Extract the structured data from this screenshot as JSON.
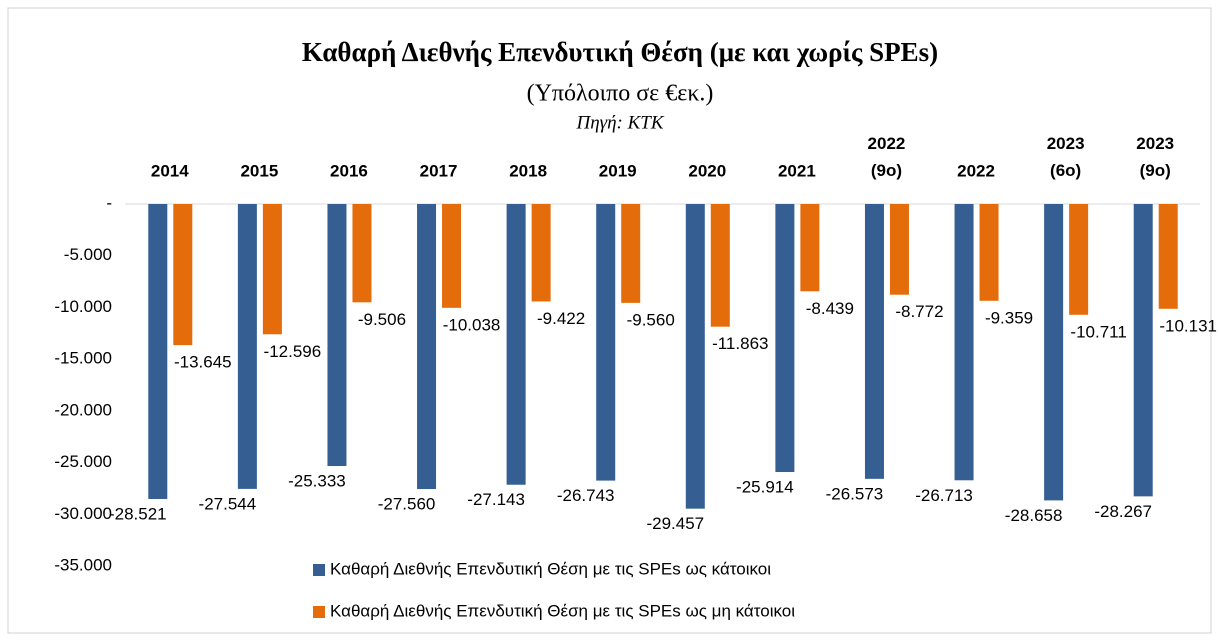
{
  "chart_data": {
    "type": "bar",
    "title": "Καθαρή Διεθνής Επενδυτική Θέση (με και χωρίς SPEs)",
    "subtitle": "(Υπόλοιπο σε €εκ.)",
    "source": "Πηγή: ΚΤΚ",
    "categories": [
      "2014",
      "2015",
      "2016",
      "2017",
      "2018",
      "2019",
      "2020",
      "2021",
      "2022 (9ο)",
      "2022",
      "2023 (6ο)",
      "2023 (9ο)"
    ],
    "series": [
      {
        "name": "Καθαρή Διεθνής Επενδυτική Θέση με τις SPEs ως κάτοικοι",
        "color": "#355f93",
        "values": [
          -28521,
          -27544,
          -25333,
          -27560,
          -27143,
          -26743,
          -29457,
          -25914,
          -26573,
          -26713,
          -28658,
          -28267
        ],
        "value_labels": [
          "-28.521",
          "-27.544",
          "-25.333",
          "-27.560",
          "-27.143",
          "-26.743",
          "-29.457",
          "-25.914",
          "-26.573",
          "-26.713",
          "-28.658",
          "-28.267"
        ]
      },
      {
        "name": "Καθαρή Διεθνής Επενδυτική Θέση με τις SPEs ως μη κάτοικοι",
        "color": "#e46c0a",
        "values": [
          -13645,
          -12596,
          -9506,
          -10038,
          -9422,
          -9560,
          -11863,
          -8439,
          -8772,
          -9359,
          -10711,
          -10131
        ],
        "value_labels": [
          "-13.645",
          "-12.596",
          "-9.506",
          "-10.038",
          "-9.422",
          "-9.560",
          "-11.863",
          "-8.439",
          "-8.772",
          "-9.359",
          "-10.711",
          "-10.131"
        ]
      }
    ],
    "ylim": [
      -35000,
      0
    ],
    "yticks": [
      {
        "value": 0,
        "label": "-"
      },
      {
        "value": -5000,
        "label": "-5.000"
      },
      {
        "value": -10000,
        "label": "-10.000"
      },
      {
        "value": -15000,
        "label": "-15.000"
      },
      {
        "value": -20000,
        "label": "-20.000"
      },
      {
        "value": -25000,
        "label": "-25.000"
      },
      {
        "value": -30000,
        "label": "-30.000"
      },
      {
        "value": -35000,
        "label": "-35.000"
      }
    ],
    "grid": false
  }
}
